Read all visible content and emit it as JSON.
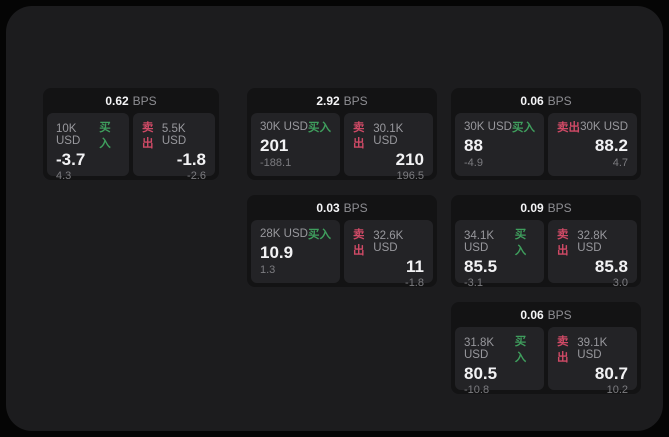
{
  "unit_label": "BPS",
  "buy_label": "买入",
  "sell_label": "卖出",
  "colors": {
    "background": "#050505",
    "panel": "#1c1c1e",
    "card": "#131314",
    "tile": "#232326",
    "buy_green": "#3f9e5d",
    "sell_red": "#cf4a66"
  },
  "cards": [
    {
      "spread": "0.62",
      "unit": "BPS",
      "buy": {
        "amount": "10K USD",
        "label": "买入",
        "price": "-3.7",
        "delta": "4.3"
      },
      "sell": {
        "amount": "5.5K USD",
        "label": "卖出",
        "price": "-1.8",
        "delta": "-2.6"
      }
    },
    {
      "spread": "2.92",
      "unit": "BPS",
      "buy": {
        "amount": "30K USD",
        "label": "买入",
        "price": "201",
        "delta": "-188.1"
      },
      "sell": {
        "amount": "30.1K USD",
        "label": "卖出",
        "price": "210",
        "delta": "196.5"
      }
    },
    {
      "spread": "0.06",
      "unit": "BPS",
      "buy": {
        "amount": "30K USD",
        "label": "买入",
        "price": "88",
        "delta": "-4.9"
      },
      "sell": {
        "amount": "30K USD",
        "label": "卖出",
        "price": "88.2",
        "delta": "4.7"
      }
    },
    {
      "spread": "0.03",
      "unit": "BPS",
      "buy": {
        "amount": "28K USD",
        "label": "买入",
        "price": "10.9",
        "delta": "1.3"
      },
      "sell": {
        "amount": "32.6K USD",
        "label": "卖出",
        "price": "11",
        "delta": "-1.8"
      }
    },
    {
      "spread": "0.09",
      "unit": "BPS",
      "buy": {
        "amount": "34.1K USD",
        "label": "买入",
        "price": "85.5",
        "delta": "-3.1"
      },
      "sell": {
        "amount": "32.8K USD",
        "label": "卖出",
        "price": "85.8",
        "delta": "3.0"
      }
    },
    {
      "spread": "0.06",
      "unit": "BPS",
      "buy": {
        "amount": "31.8K USD",
        "label": "买入",
        "price": "80.5",
        "delta": "-10.8"
      },
      "sell": {
        "amount": "39.1K USD",
        "label": "卖出",
        "price": "80.7",
        "delta": "10.2"
      }
    }
  ]
}
